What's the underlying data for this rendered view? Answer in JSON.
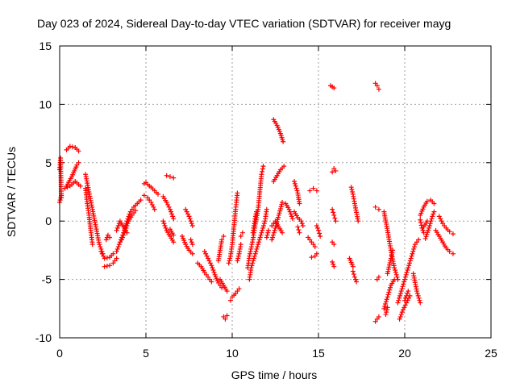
{
  "chart_data": {
    "type": "scatter",
    "title": "Day 023 of 2024, Sidereal Day-to-day VTEC variation (SDTVAR) for receiver mayg",
    "xlabel": "GPS time / hours",
    "ylabel": "SDTVAR / TECUs",
    "xlim": [
      0,
      25
    ],
    "ylim": [
      -10,
      15
    ],
    "xticks": [
      0,
      5,
      10,
      15,
      20,
      25
    ],
    "yticks": [
      -10,
      -5,
      0,
      5,
      10,
      15
    ],
    "xtick_labels": [
      "0",
      "5",
      "10",
      "15",
      "20",
      "25"
    ],
    "ytick_labels": [
      "-10",
      "-5",
      "0",
      "5",
      "10",
      "15"
    ],
    "grid": true,
    "marker": "+",
    "color": "#ff0000",
    "segments": [
      [
        [
          0.0,
          4.4
        ],
        [
          0.05,
          5.4
        ],
        [
          0.1,
          2.0
        ]
      ],
      [
        [
          0.0,
          1.6
        ],
        [
          0.1,
          2.2
        ]
      ],
      [
        [
          0.4,
          6.1
        ],
        [
          0.6,
          6.4
        ],
        [
          0.9,
          6.3
        ],
        [
          1.1,
          6.0
        ]
      ],
      [
        [
          0.4,
          3.0
        ],
        [
          0.7,
          3.8
        ],
        [
          1.0,
          4.8
        ],
        [
          1.1,
          5.0
        ]
      ],
      [
        [
          0.3,
          2.8
        ],
        [
          0.6,
          3.0
        ],
        [
          0.9,
          3.4
        ],
        [
          1.2,
          3.0
        ]
      ],
      [
        [
          1.5,
          4.0
        ],
        [
          1.7,
          2.5
        ],
        [
          1.9,
          1.0
        ],
        [
          2.1,
          -0.5
        ],
        [
          2.3,
          -2.0
        ],
        [
          2.5,
          -2.8
        ]
      ],
      [
        [
          1.5,
          2.8
        ],
        [
          1.6,
          1.5
        ],
        [
          1.7,
          0.5
        ],
        [
          1.8,
          -0.8
        ],
        [
          1.9,
          -2.0
        ]
      ],
      [
        [
          2.4,
          -2.6
        ],
        [
          2.6,
          -3.2
        ],
        [
          2.9,
          -3.1
        ],
        [
          3.1,
          -2.8
        ]
      ],
      [
        [
          2.6,
          -3.9
        ],
        [
          2.9,
          -3.8
        ],
        [
          3.1,
          -3.6
        ],
        [
          3.3,
          -3.2
        ]
      ],
      [
        [
          2.7,
          -1.6
        ],
        [
          2.8,
          -1.2
        ],
        [
          2.9,
          -1.4
        ]
      ],
      [
        [
          3.3,
          -0.8
        ],
        [
          3.5,
          0.0
        ],
        [
          3.7,
          -0.5
        ],
        [
          3.9,
          -1.0
        ]
      ],
      [
        [
          3.3,
          -2.6
        ],
        [
          3.5,
          -1.8
        ],
        [
          3.7,
          -1.0
        ],
        [
          3.9,
          0.0
        ],
        [
          4.1,
          0.8
        ],
        [
          4.3,
          1.2
        ],
        [
          4.5,
          1.5
        ],
        [
          4.7,
          1.8
        ]
      ],
      [
        [
          3.6,
          -1.6
        ],
        [
          3.8,
          -0.8
        ],
        [
          4.0,
          0.0
        ],
        [
          4.2,
          0.5
        ],
        [
          4.4,
          0.9
        ]
      ],
      [
        [
          4.9,
          2.2
        ],
        [
          5.1,
          2.0
        ],
        [
          5.3,
          1.6
        ],
        [
          5.5,
          1.0
        ]
      ],
      [
        [
          4.9,
          3.2
        ],
        [
          5.0,
          3.3
        ],
        [
          5.2,
          3.0
        ]
      ],
      [
        [
          5.3,
          2.9
        ],
        [
          5.5,
          2.6
        ],
        [
          5.7,
          2.3
        ]
      ],
      [
        [
          6.0,
          2.1
        ],
        [
          6.2,
          1.6
        ],
        [
          6.4,
          1.0
        ],
        [
          6.6,
          0.2
        ]
      ],
      [
        [
          6.0,
          0.0
        ],
        [
          6.2,
          -0.8
        ],
        [
          6.4,
          -1.3
        ],
        [
          6.6,
          -1.8
        ]
      ],
      [
        [
          6.2,
          3.9
        ],
        [
          6.4,
          3.8
        ],
        [
          6.6,
          3.7
        ]
      ],
      [
        [
          6.4,
          -0.7
        ],
        [
          6.6,
          -1.2
        ]
      ],
      [
        [
          7.1,
          -1.3
        ],
        [
          7.3,
          -2.0
        ],
        [
          7.5,
          -2.5
        ],
        [
          7.7,
          -2.8
        ]
      ],
      [
        [
          7.3,
          1.0
        ],
        [
          7.5,
          0.4
        ],
        [
          7.6,
          0.0
        ],
        [
          7.7,
          -0.4
        ]
      ],
      [
        [
          7.6,
          -1.6
        ],
        [
          7.7,
          -2.0
        ]
      ],
      [
        [
          8.0,
          -3.6
        ],
        [
          8.2,
          -3.9
        ],
        [
          8.4,
          -4.4
        ],
        [
          8.6,
          -4.8
        ],
        [
          8.8,
          -5.2
        ]
      ],
      [
        [
          8.4,
          -2.6
        ],
        [
          8.6,
          -3.2
        ],
        [
          8.8,
          -3.8
        ],
        [
          9.0,
          -4.6
        ],
        [
          9.2,
          -5.3
        ],
        [
          9.4,
          -5.7
        ]
      ],
      [
        [
          9.2,
          -3.4
        ],
        [
          9.3,
          -2.5
        ],
        [
          9.4,
          -1.6
        ],
        [
          9.5,
          -1.3
        ]
      ],
      [
        [
          9.3,
          -5.0
        ],
        [
          9.5,
          -5.5
        ],
        [
          9.7,
          -6.0
        ]
      ],
      [
        [
          9.5,
          -8.2
        ],
        [
          9.6,
          -8.4
        ],
        [
          9.7,
          -8.1
        ]
      ],
      [
        [
          9.8,
          -3.6
        ],
        [
          9.9,
          -3.0
        ],
        [
          10.0,
          -2.0
        ],
        [
          10.1,
          -0.5
        ],
        [
          10.2,
          1.0
        ],
        [
          10.3,
          2.4
        ]
      ],
      [
        [
          9.9,
          -6.8
        ],
        [
          10.0,
          -6.5
        ],
        [
          10.2,
          -6.2
        ],
        [
          10.4,
          -5.8
        ]
      ],
      [
        [
          10.3,
          -3.4
        ],
        [
          10.4,
          -2.8
        ],
        [
          10.5,
          -2.0
        ]
      ],
      [
        [
          10.5,
          -1.3
        ],
        [
          10.6,
          -1.0
        ]
      ],
      [
        [
          10.9,
          -4.0
        ],
        [
          11.0,
          -3.0
        ],
        [
          11.2,
          -1.6
        ],
        [
          11.3,
          -0.6
        ],
        [
          11.5,
          1.0
        ],
        [
          11.6,
          2.5
        ],
        [
          11.7,
          4.0
        ],
        [
          11.8,
          4.7
        ]
      ],
      [
        [
          11.0,
          -5.0
        ],
        [
          11.1,
          -4.0
        ],
        [
          11.3,
          -3.0
        ],
        [
          11.5,
          -2.0
        ],
        [
          11.7,
          -1.0
        ],
        [
          11.9,
          0.0
        ],
        [
          12.0,
          1.0
        ]
      ],
      [
        [
          11.2,
          -1.0
        ],
        [
          11.3,
          0.0
        ],
        [
          11.4,
          0.8
        ]
      ],
      [
        [
          12.0,
          -1.4
        ],
        [
          12.1,
          -0.8
        ]
      ],
      [
        [
          12.3,
          -1.6
        ],
        [
          12.5,
          -0.6
        ],
        [
          12.7,
          0.5
        ],
        [
          12.9,
          1.6
        ]
      ],
      [
        [
          12.3,
          -0.4
        ],
        [
          12.5,
          0.0
        ],
        [
          12.7,
          -0.5
        ],
        [
          12.9,
          -1.0
        ]
      ],
      [
        [
          12.4,
          8.7
        ],
        [
          12.6,
          8.2
        ],
        [
          12.8,
          7.5
        ],
        [
          12.95,
          6.8
        ]
      ],
      [
        [
          12.4,
          3.4
        ],
        [
          12.6,
          3.9
        ],
        [
          12.8,
          4.4
        ],
        [
          13.0,
          4.7
        ]
      ],
      [
        [
          13.1,
          1.5
        ],
        [
          13.3,
          1.0
        ],
        [
          13.5,
          0.2
        ]
      ],
      [
        [
          13.6,
          3.4
        ],
        [
          13.8,
          2.4
        ],
        [
          13.9,
          1.5
        ]
      ],
      [
        [
          13.6,
          0.8
        ],
        [
          13.8,
          0.3
        ],
        [
          14.0,
          0.0
        ],
        [
          14.1,
          -0.4
        ]
      ],
      [
        [
          13.8,
          -0.5
        ],
        [
          13.9,
          -1.0
        ]
      ],
      [
        [
          14.4,
          -1.4
        ],
        [
          14.6,
          -1.8
        ],
        [
          14.8,
          -2.2
        ]
      ],
      [
        [
          14.5,
          2.6
        ],
        [
          14.7,
          2.8
        ],
        [
          14.9,
          2.6
        ]
      ],
      [
        [
          14.6,
          -3.1
        ],
        [
          14.8,
          -3.0
        ],
        [
          14.9,
          -2.8
        ]
      ],
      [
        [
          14.9,
          -0.4
        ],
        [
          15.0,
          -0.8
        ],
        [
          15.1,
          -1.3
        ]
      ],
      [
        [
          15.7,
          11.6
        ],
        [
          15.8,
          11.5
        ],
        [
          15.9,
          11.4
        ]
      ],
      [
        [
          15.8,
          4.2
        ],
        [
          15.9,
          4.5
        ],
        [
          16.0,
          4.3
        ]
      ],
      [
        [
          15.8,
          1.0
        ],
        [
          15.9,
          0.5
        ],
        [
          16.0,
          0.0
        ]
      ],
      [
        [
          15.8,
          -1.8
        ],
        [
          15.9,
          -2.0
        ]
      ],
      [
        [
          15.8,
          -3.5
        ],
        [
          15.9,
          -3.9
        ]
      ],
      [
        [
          16.9,
          2.9
        ],
        [
          17.0,
          2.3
        ],
        [
          17.1,
          1.5
        ],
        [
          17.3,
          0.0
        ]
      ],
      [
        [
          17.0,
          -4.3
        ],
        [
          17.1,
          -4.8
        ],
        [
          17.2,
          -5.2
        ]
      ],
      [
        [
          16.8,
          -3.2
        ],
        [
          17.0,
          -3.9
        ]
      ],
      [
        [
          18.3,
          11.8
        ],
        [
          18.4,
          11.6
        ],
        [
          18.5,
          11.3
        ]
      ],
      [
        [
          18.3,
          1.2
        ],
        [
          18.5,
          1.0
        ]
      ],
      [
        [
          18.4,
          -5.0
        ],
        [
          18.5,
          -4.8
        ]
      ],
      [
        [
          18.3,
          -8.6
        ],
        [
          18.5,
          -8.2
        ]
      ],
      [
        [
          18.8,
          0.8
        ],
        [
          19.0,
          -0.8
        ],
        [
          19.2,
          -2.5
        ],
        [
          19.4,
          -4.0
        ],
        [
          19.6,
          -5.0
        ]
      ],
      [
        [
          18.8,
          -7.5
        ],
        [
          19.0,
          -6.5
        ],
        [
          19.2,
          -5.5
        ],
        [
          19.4,
          -5.0
        ]
      ],
      [
        [
          19.0,
          -4.5
        ],
        [
          19.2,
          -3.2
        ],
        [
          19.3,
          -2.5
        ]
      ],
      [
        [
          18.9,
          -8.0
        ],
        [
          19.0,
          -7.4
        ]
      ],
      [
        [
          19.6,
          -7.0
        ],
        [
          19.8,
          -6.0
        ],
        [
          20.0,
          -5.0
        ],
        [
          20.2,
          -4.0
        ],
        [
          20.4,
          -3.0
        ],
        [
          20.6,
          -2.0
        ],
        [
          20.8,
          -1.6
        ]
      ],
      [
        [
          19.7,
          -8.4
        ],
        [
          19.9,
          -7.6
        ],
        [
          20.1,
          -7.0
        ],
        [
          20.3,
          -6.4
        ]
      ],
      [
        [
          20.0,
          -6.8
        ],
        [
          20.2,
          -6.0
        ]
      ],
      [
        [
          20.5,
          -4.5
        ],
        [
          20.7,
          -6.0
        ],
        [
          20.9,
          -7.0
        ]
      ],
      [
        [
          20.9,
          0.1
        ],
        [
          21.0,
          -0.6
        ],
        [
          21.1,
          -1.0
        ]
      ],
      [
        [
          20.9,
          0.5
        ],
        [
          21.1,
          1.2
        ],
        [
          21.3,
          1.7
        ],
        [
          21.5,
          1.8
        ],
        [
          21.7,
          1.5
        ]
      ],
      [
        [
          21.2,
          -1.5
        ],
        [
          21.4,
          -0.6
        ],
        [
          21.6,
          0.4
        ],
        [
          21.7,
          0.8
        ]
      ],
      [
        [
          21.1,
          -0.5
        ],
        [
          21.3,
          0.0
        ]
      ],
      [
        [
          21.8,
          -0.8
        ],
        [
          22.0,
          -1.3
        ],
        [
          22.2,
          -1.8
        ],
        [
          22.4,
          -2.3
        ],
        [
          22.6,
          -2.6
        ],
        [
          22.8,
          -2.8
        ]
      ],
      [
        [
          22.0,
          0.4
        ],
        [
          22.2,
          -0.2
        ],
        [
          22.4,
          -0.6
        ],
        [
          22.6,
          -0.9
        ],
        [
          22.8,
          -1.1
        ]
      ]
    ]
  }
}
